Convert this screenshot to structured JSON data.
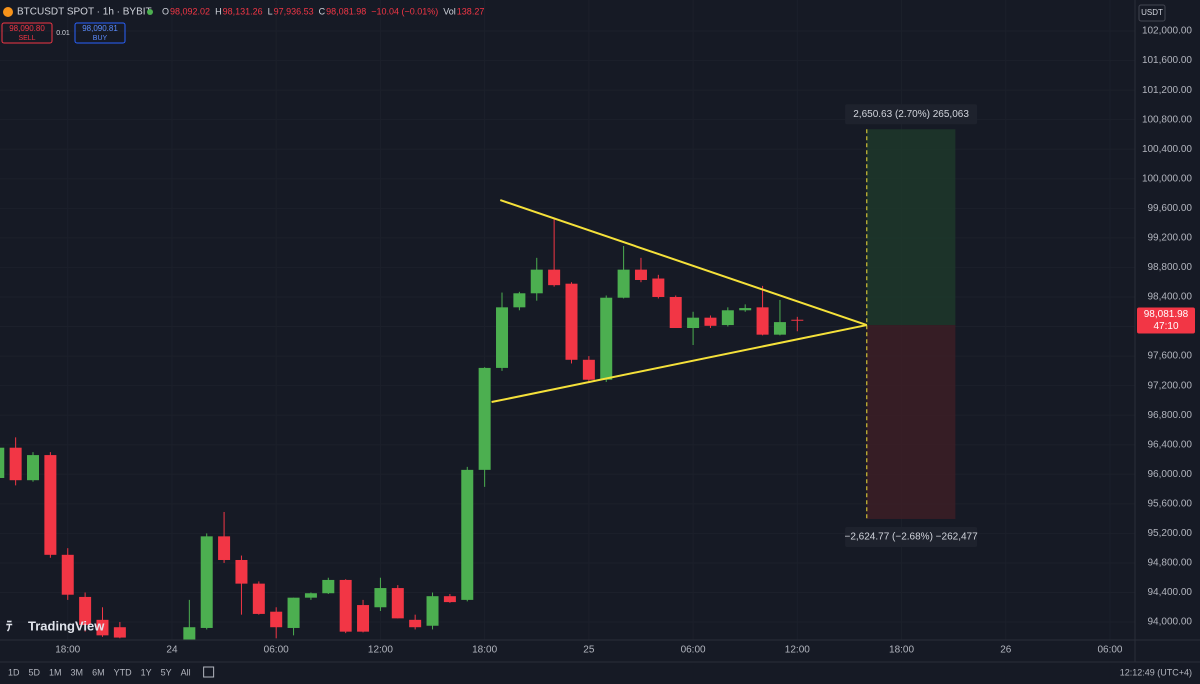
{
  "header": {
    "symbol": "BTCUSDT SPOT · 1h · BYBIT",
    "ohlc": [
      {
        "label": "O",
        "value": "98,092.02"
      },
      {
        "label": "H",
        "value": "98,131.26"
      },
      {
        "label": "L",
        "value": "97,936.53"
      },
      {
        "label": "C",
        "value": "98,081.98"
      },
      {
        "label": "",
        "value": "−10.04 (−0.01%)"
      },
      {
        "label": "Vol",
        "value": "138.27"
      }
    ],
    "sell_price": "98,090.80",
    "sell": "SELL",
    "spread": "0.01",
    "buy_price": "98,090.81",
    "buy": "BUY",
    "currency": "USDT",
    "logo": "TradingView"
  },
  "chart_data": {
    "type": "candlestick",
    "up_color": "#4caf50",
    "down_color": "#f23645",
    "xlim": [
      -9.9,
      55.44
    ],
    "ylim": [
      93757,
      102420
    ],
    "xticks": [
      {
        "value": -6,
        "label": "18:00"
      },
      {
        "value": 0,
        "label": "24"
      },
      {
        "value": 6,
        "label": "06:00"
      },
      {
        "value": 12,
        "label": "12:00"
      },
      {
        "value": 18,
        "label": "18:00"
      },
      {
        "value": 24,
        "label": "25"
      },
      {
        "value": 30,
        "label": "06:00"
      },
      {
        "value": 36,
        "label": "12:00"
      },
      {
        "value": 42,
        "label": "18:00"
      },
      {
        "value": 48,
        "label": "26"
      },
      {
        "value": 54,
        "label": "06:00"
      }
    ],
    "yticks": [
      {
        "value": 94000,
        "label": "94,000.00"
      },
      {
        "value": 94400,
        "label": "94,400.00"
      },
      {
        "value": 94800,
        "label": "94,800.00"
      },
      {
        "value": 95200,
        "label": "95,200.00"
      },
      {
        "value": 95600,
        "label": "95,600.00"
      },
      {
        "value": 96000,
        "label": "96,000.00"
      },
      {
        "value": 96400,
        "label": "96,400.00"
      },
      {
        "value": 96800,
        "label": "96,800.00"
      },
      {
        "value": 97200,
        "label": "97,200.00"
      },
      {
        "value": 97600,
        "label": "97,600.00"
      },
      {
        "value": 98000,
        "label": "98,000.00"
      },
      {
        "value": 98400,
        "label": "98,400.00"
      },
      {
        "value": 98800,
        "label": "98,800.00"
      },
      {
        "value": 99200,
        "label": "99,200.00"
      },
      {
        "value": 99600,
        "label": "99,600.00"
      },
      {
        "value": 100000,
        "label": "100,000.00"
      },
      {
        "value": 100400,
        "label": "100,400.00"
      },
      {
        "value": 100800,
        "label": "100,800.00"
      },
      {
        "value": 101200,
        "label": "101,200.00"
      },
      {
        "value": 101600,
        "label": "101,600.00"
      },
      {
        "value": 102000,
        "label": "102,000.00"
      }
    ],
    "x": [
      -10,
      -9,
      -8,
      -7,
      -6,
      -5,
      -4,
      -3,
      1,
      2,
      3,
      4,
      5,
      6,
      7,
      8,
      9,
      10,
      11,
      12,
      13,
      14,
      15,
      16,
      17,
      18,
      19,
      20,
      21,
      22,
      23,
      24,
      25,
      26,
      27,
      28,
      29,
      30,
      31,
      32,
      33,
      34,
      35,
      36
    ],
    "open": [
      95950,
      96360,
      95920,
      96260,
      94910,
      94340,
      94030,
      93930,
      93760,
      93920,
      95160,
      94840,
      94520,
      94140,
      93920,
      94330,
      94390,
      94570,
      94230,
      94200,
      94460,
      94030,
      93950,
      94350,
      94300,
      96060,
      97440,
      98260,
      98450,
      98770,
      98580,
      97550,
      97280,
      98390,
      98770,
      98650,
      98400,
      97980,
      98120,
      98020,
      98220,
      98260,
      97890,
      98092.02
    ],
    "high": [
      96400,
      96500,
      96300,
      96300,
      95000,
      94400,
      94200,
      94000,
      94300,
      95200,
      95490,
      94900,
      94550,
      94200,
      94330,
      94400,
      94600,
      94580,
      94300,
      94600,
      94500,
      94100,
      94400,
      94380,
      96100,
      97450,
      98460,
      98470,
      98930,
      99470,
      98600,
      97600,
      98420,
      99090,
      98930,
      98700,
      98420,
      98200,
      98150,
      98260,
      98300,
      98550,
      98360,
      98131.26
    ],
    "low": [
      95900,
      95850,
      95900,
      94870,
      94300,
      93870,
      93800,
      93780,
      93750,
      93900,
      94800,
      94100,
      94100,
      93780,
      93820,
      94300,
      94380,
      93850,
      93860,
      94150,
      94050,
      93900,
      93900,
      94260,
      94280,
      95830,
      97400,
      98220,
      98350,
      98540,
      97500,
      97250,
      97250,
      98380,
      98600,
      98380,
      97980,
      97750,
      97980,
      98000,
      98200,
      97880,
      97880,
      97936.53
    ],
    "close": [
      96360,
      95920,
      96260,
      94910,
      94370,
      93960,
      93820,
      93790,
      93930,
      95160,
      94840,
      94520,
      94110,
      93930,
      94330,
      94390,
      94570,
      93870,
      93870,
      94460,
      94050,
      93930,
      94350,
      94270,
      96060,
      97440,
      98260,
      98450,
      98770,
      98560,
      97550,
      97280,
      98390,
      98770,
      98630,
      98400,
      97980,
      98120,
      98010,
      98220,
      98250,
      97890,
      98060,
      98081.98
    ],
    "triangle": {
      "color": "#f5e13a",
      "upper": [
        [
          18.9,
          99712
        ],
        [
          40,
          98020
        ]
      ],
      "lower": [
        [
          18.4,
          96978
        ],
        [
          40,
          98020
        ]
      ]
    },
    "position": {
      "x": [
        40,
        45.1
      ],
      "entry": 98020,
      "target": 100670,
      "stop": 95395,
      "target_label": "2,650.63 (2.70%) 265,063",
      "stop_label": "−2,624.77 (−2.68%) −262,477"
    },
    "last_price_label": "98,081.98",
    "countdown": "47:10"
  },
  "footer": {
    "ranges": [
      "1D",
      "5D",
      "1M",
      "3M",
      "6M",
      "YTD",
      "1Y",
      "5Y",
      "All"
    ],
    "clock": "12:12:49 (UTC+4)"
  }
}
